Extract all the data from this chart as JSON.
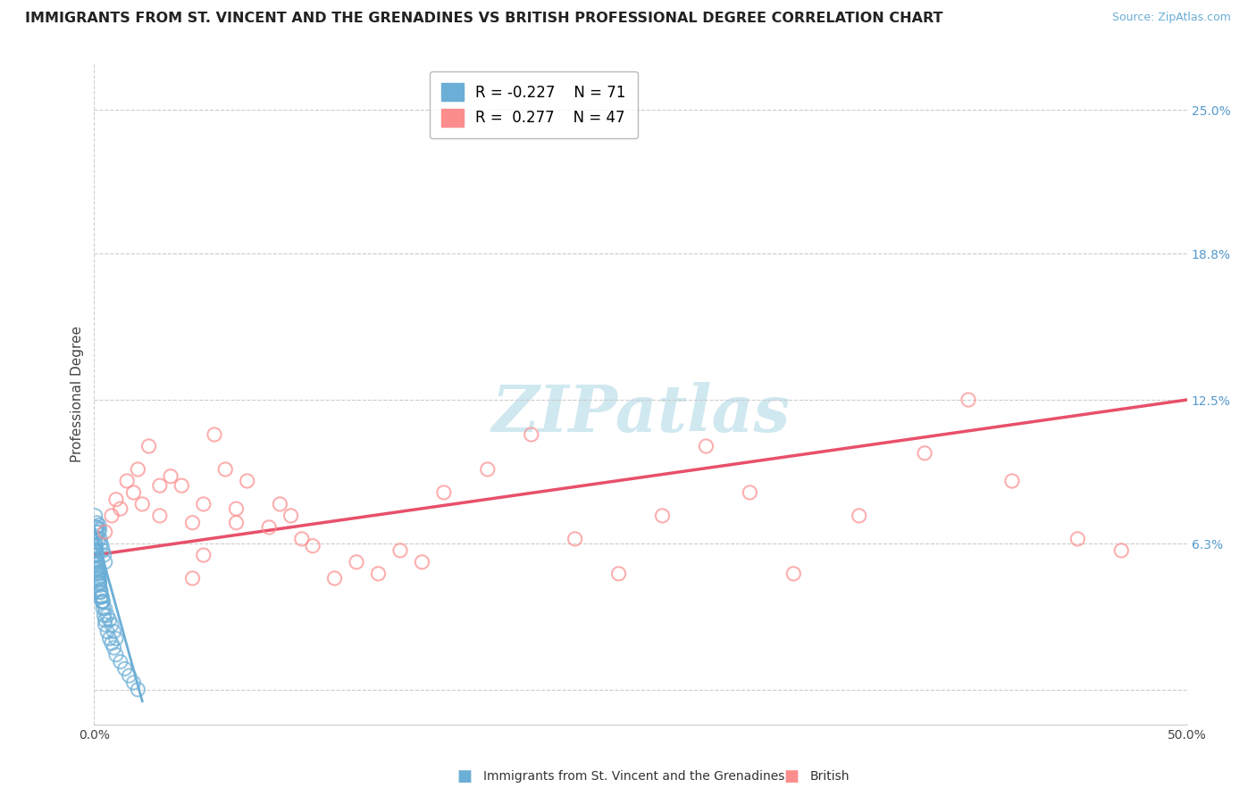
{
  "title": "IMMIGRANTS FROM ST. VINCENT AND THE GRENADINES VS BRITISH PROFESSIONAL DEGREE CORRELATION CHART",
  "source": "Source: ZipAtlas.com",
  "ylabel": "Professional Degree",
  "legend_blue_r": "-0.227",
  "legend_blue_n": "71",
  "legend_pink_r": "0.277",
  "legend_pink_n": "47",
  "blue_marker_color": "#6BAED6",
  "pink_marker_color": "#FC8D8D",
  "trend_blue_color": "#6BAED6",
  "trend_pink_color": "#E8506A",
  "watermark": "ZIPatlas",
  "xlim": [
    0.0,
    50.0
  ],
  "ylim": [
    -1.5,
    27.0
  ],
  "ytick_vals": [
    0.0,
    6.3,
    12.5,
    18.8,
    25.0
  ],
  "ytick_labels": [
    "",
    "6.3%",
    "12.5%",
    "18.8%",
    "25.0%"
  ],
  "xtick_vals": [
    0.0,
    50.0
  ],
  "xtick_labels": [
    "0.0%",
    "50.0%"
  ],
  "blue_x": [
    0.05,
    0.08,
    0.1,
    0.12,
    0.15,
    0.18,
    0.2,
    0.22,
    0.25,
    0.28,
    0.3,
    0.35,
    0.4,
    0.45,
    0.5,
    0.05,
    0.08,
    0.1,
    0.12,
    0.15,
    0.18,
    0.2,
    0.22,
    0.25,
    0.28,
    0.3,
    0.35,
    0.4,
    0.45,
    0.5,
    0.05,
    0.08,
    0.1,
    0.12,
    0.15,
    0.18,
    0.2,
    0.22,
    0.25,
    0.3,
    0.35,
    0.4,
    0.05,
    0.08,
    0.1,
    0.12,
    0.15,
    0.18,
    0.2,
    0.22,
    0.25,
    0.3,
    0.35,
    0.4,
    0.5,
    0.6,
    0.7,
    0.8,
    0.9,
    1.0,
    0.5,
    0.6,
    0.7,
    0.8,
    0.9,
    1.0,
    1.2,
    1.4,
    1.6,
    1.8,
    2.0
  ],
  "blue_y": [
    7.5,
    7.0,
    6.8,
    7.2,
    7.0,
    6.5,
    6.8,
    7.1,
    6.9,
    6.5,
    6.3,
    6.2,
    6.0,
    5.8,
    5.5,
    6.0,
    5.8,
    5.6,
    5.5,
    5.2,
    5.0,
    4.8,
    4.6,
    4.5,
    4.2,
    4.0,
    3.8,
    3.5,
    3.2,
    3.0,
    6.2,
    6.0,
    5.8,
    5.6,
    5.4,
    5.2,
    5.0,
    4.8,
    4.6,
    4.2,
    4.0,
    3.8,
    6.5,
    6.2,
    6.0,
    5.8,
    5.5,
    5.3,
    5.1,
    4.9,
    4.7,
    4.3,
    4.0,
    3.8,
    3.5,
    3.2,
    3.0,
    2.8,
    2.5,
    2.2,
    2.8,
    2.5,
    2.2,
    2.0,
    1.8,
    1.5,
    1.2,
    0.9,
    0.6,
    0.3,
    0.0
  ],
  "pink_x": [
    0.5,
    0.8,
    1.0,
    1.2,
    1.5,
    1.8,
    2.0,
    2.2,
    2.5,
    3.0,
    3.5,
    4.0,
    4.5,
    5.0,
    5.5,
    6.0,
    6.5,
    7.0,
    8.0,
    8.5,
    9.0,
    10.0,
    11.0,
    12.0,
    13.0,
    14.0,
    15.0,
    16.0,
    18.0,
    20.0,
    22.0,
    24.0,
    26.0,
    28.0,
    30.0,
    32.0,
    35.0,
    38.0,
    40.0,
    42.0,
    45.0,
    47.0,
    3.0,
    4.5,
    5.0,
    6.5,
    9.5
  ],
  "pink_y": [
    6.8,
    7.5,
    8.2,
    7.8,
    9.0,
    8.5,
    9.5,
    8.0,
    10.5,
    7.5,
    9.2,
    8.8,
    7.2,
    8.0,
    11.0,
    9.5,
    7.8,
    9.0,
    7.0,
    8.0,
    7.5,
    6.2,
    4.8,
    5.5,
    5.0,
    6.0,
    5.5,
    8.5,
    9.5,
    11.0,
    6.5,
    5.0,
    7.5,
    10.5,
    8.5,
    5.0,
    7.5,
    10.2,
    12.5,
    9.0,
    6.5,
    6.0,
    8.8,
    4.8,
    5.8,
    7.2,
    6.5
  ],
  "pink_trend_x0": 0.0,
  "pink_trend_x1": 50.0,
  "pink_trend_y0": 5.8,
  "pink_trend_y1": 12.5,
  "blue_trend_x0": 0.0,
  "blue_trend_x1": 2.2,
  "blue_trend_y0": 7.0,
  "blue_trend_y1": -0.5,
  "background_color": "#FFFFFF",
  "grid_color": "#CCCCCC",
  "title_color": "#222222",
  "source_color": "#6BAED6",
  "ylabel_color": "#444444",
  "ytick_color": "#5599CC",
  "title_fontsize": 11.5,
  "source_fontsize": 9,
  "legend_fontsize": 12,
  "watermark_fontsize": 52,
  "ylabel_fontsize": 11,
  "tick_fontsize": 10,
  "bottom_legend_blue": "Immigrants from St. Vincent and the Grenadines",
  "bottom_legend_pink": "British"
}
